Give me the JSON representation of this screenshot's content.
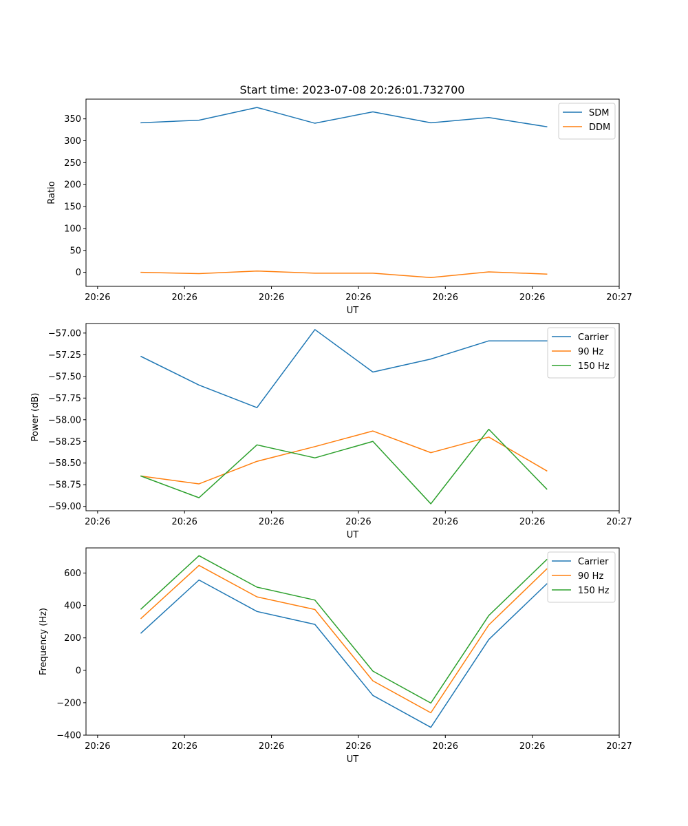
{
  "figure_title": "Start time: 2023-07-08 20:26:01.732700",
  "chart_data": [
    {
      "type": "line",
      "title": "Start time: 2023-07-08 20:26:01.732700",
      "xlabel": "UT",
      "ylabel": "Ratio",
      "x": [
        1,
        2,
        3,
        4,
        5,
        6,
        7,
        8
      ],
      "xticks": [
        0.25,
        1.75,
        3.25,
        4.75,
        6.25,
        7.75,
        9.25
      ],
      "xtick_labels": [
        "20:26",
        "20:26",
        "20:26",
        "20:26",
        "20:26",
        "20:26",
        "20:27"
      ],
      "xlim": [
        0.05,
        9.25
      ],
      "ylim": [
        -32,
        395
      ],
      "yticks": [
        0,
        50,
        100,
        150,
        200,
        250,
        300,
        350
      ],
      "ytick_labels": [
        "0",
        "50",
        "100",
        "150",
        "200",
        "250",
        "300",
        "350"
      ],
      "legend_position": "upper right",
      "series": [
        {
          "name": "SDM",
          "color": "#1f77b4",
          "values": [
            341,
            347,
            376,
            340,
            366,
            341,
            353,
            332
          ]
        },
        {
          "name": "DDM",
          "color": "#ff7f0e",
          "values": [
            0,
            -3,
            3,
            -2,
            -2,
            -12,
            1,
            -4
          ]
        }
      ]
    },
    {
      "type": "line",
      "title": "",
      "xlabel": "UT",
      "ylabel": "Power (dB)",
      "x": [
        1,
        2,
        3,
        4,
        5,
        6,
        7,
        8
      ],
      "xticks": [
        0.25,
        1.75,
        3.25,
        4.75,
        6.25,
        7.75,
        9.25
      ],
      "xtick_labels": [
        "20:26",
        "20:26",
        "20:26",
        "20:26",
        "20:26",
        "20:26",
        "20:27"
      ],
      "xlim": [
        0.05,
        9.25
      ],
      "ylim": [
        -59.05,
        -56.89
      ],
      "yticks": [
        -59.0,
        -58.75,
        -58.5,
        -58.25,
        -58.0,
        -57.75,
        -57.5,
        -57.25,
        -57.0
      ],
      "ytick_labels": [
        "−59.00",
        "−58.75",
        "−58.50",
        "−58.25",
        "−58.00",
        "−57.75",
        "−57.50",
        "−57.25",
        "−57.00"
      ],
      "legend_position": "upper right",
      "series": [
        {
          "name": "Carrier",
          "color": "#1f77b4",
          "values": [
            -57.27,
            -57.6,
            -57.86,
            -56.96,
            -57.45,
            -57.3,
            -57.09,
            -57.09
          ]
        },
        {
          "name": "90 Hz",
          "color": "#ff7f0e",
          "values": [
            -58.65,
            -58.74,
            -58.48,
            -58.31,
            -58.13,
            -58.38,
            -58.2,
            -58.59
          ]
        },
        {
          "name": "150 Hz",
          "color": "#2ca02c",
          "values": [
            -58.65,
            -58.9,
            -58.29,
            -58.44,
            -58.25,
            -58.97,
            -58.11,
            -58.8
          ]
        }
      ]
    },
    {
      "type": "line",
      "title": "",
      "xlabel": "UT",
      "ylabel": "Frequency (Hz)",
      "x": [
        1,
        2,
        3,
        4,
        5,
        6,
        7,
        8
      ],
      "xticks": [
        0.25,
        1.75,
        3.25,
        4.75,
        6.25,
        7.75,
        9.25
      ],
      "xtick_labels": [
        "20:26",
        "20:26",
        "20:26",
        "20:26",
        "20:26",
        "20:26",
        "20:27"
      ],
      "xlim": [
        0.05,
        9.25
      ],
      "ylim": [
        -400,
        755
      ],
      "yticks": [
        -400,
        -200,
        0,
        200,
        400,
        600
      ],
      "ytick_labels": [
        "−400",
        "−200",
        "0",
        "200",
        "400",
        "600"
      ],
      "legend_position": "upper right",
      "series": [
        {
          "name": "Carrier",
          "color": "#1f77b4",
          "values": [
            230,
            557,
            363,
            283,
            -155,
            -352,
            190,
            533
          ]
        },
        {
          "name": "90 Hz",
          "color": "#ff7f0e",
          "values": [
            320,
            647,
            453,
            375,
            -65,
            -262,
            280,
            625
          ]
        },
        {
          "name": "150 Hz",
          "color": "#2ca02c",
          "values": [
            378,
            707,
            513,
            433,
            -5,
            -202,
            338,
            683
          ]
        }
      ]
    }
  ]
}
